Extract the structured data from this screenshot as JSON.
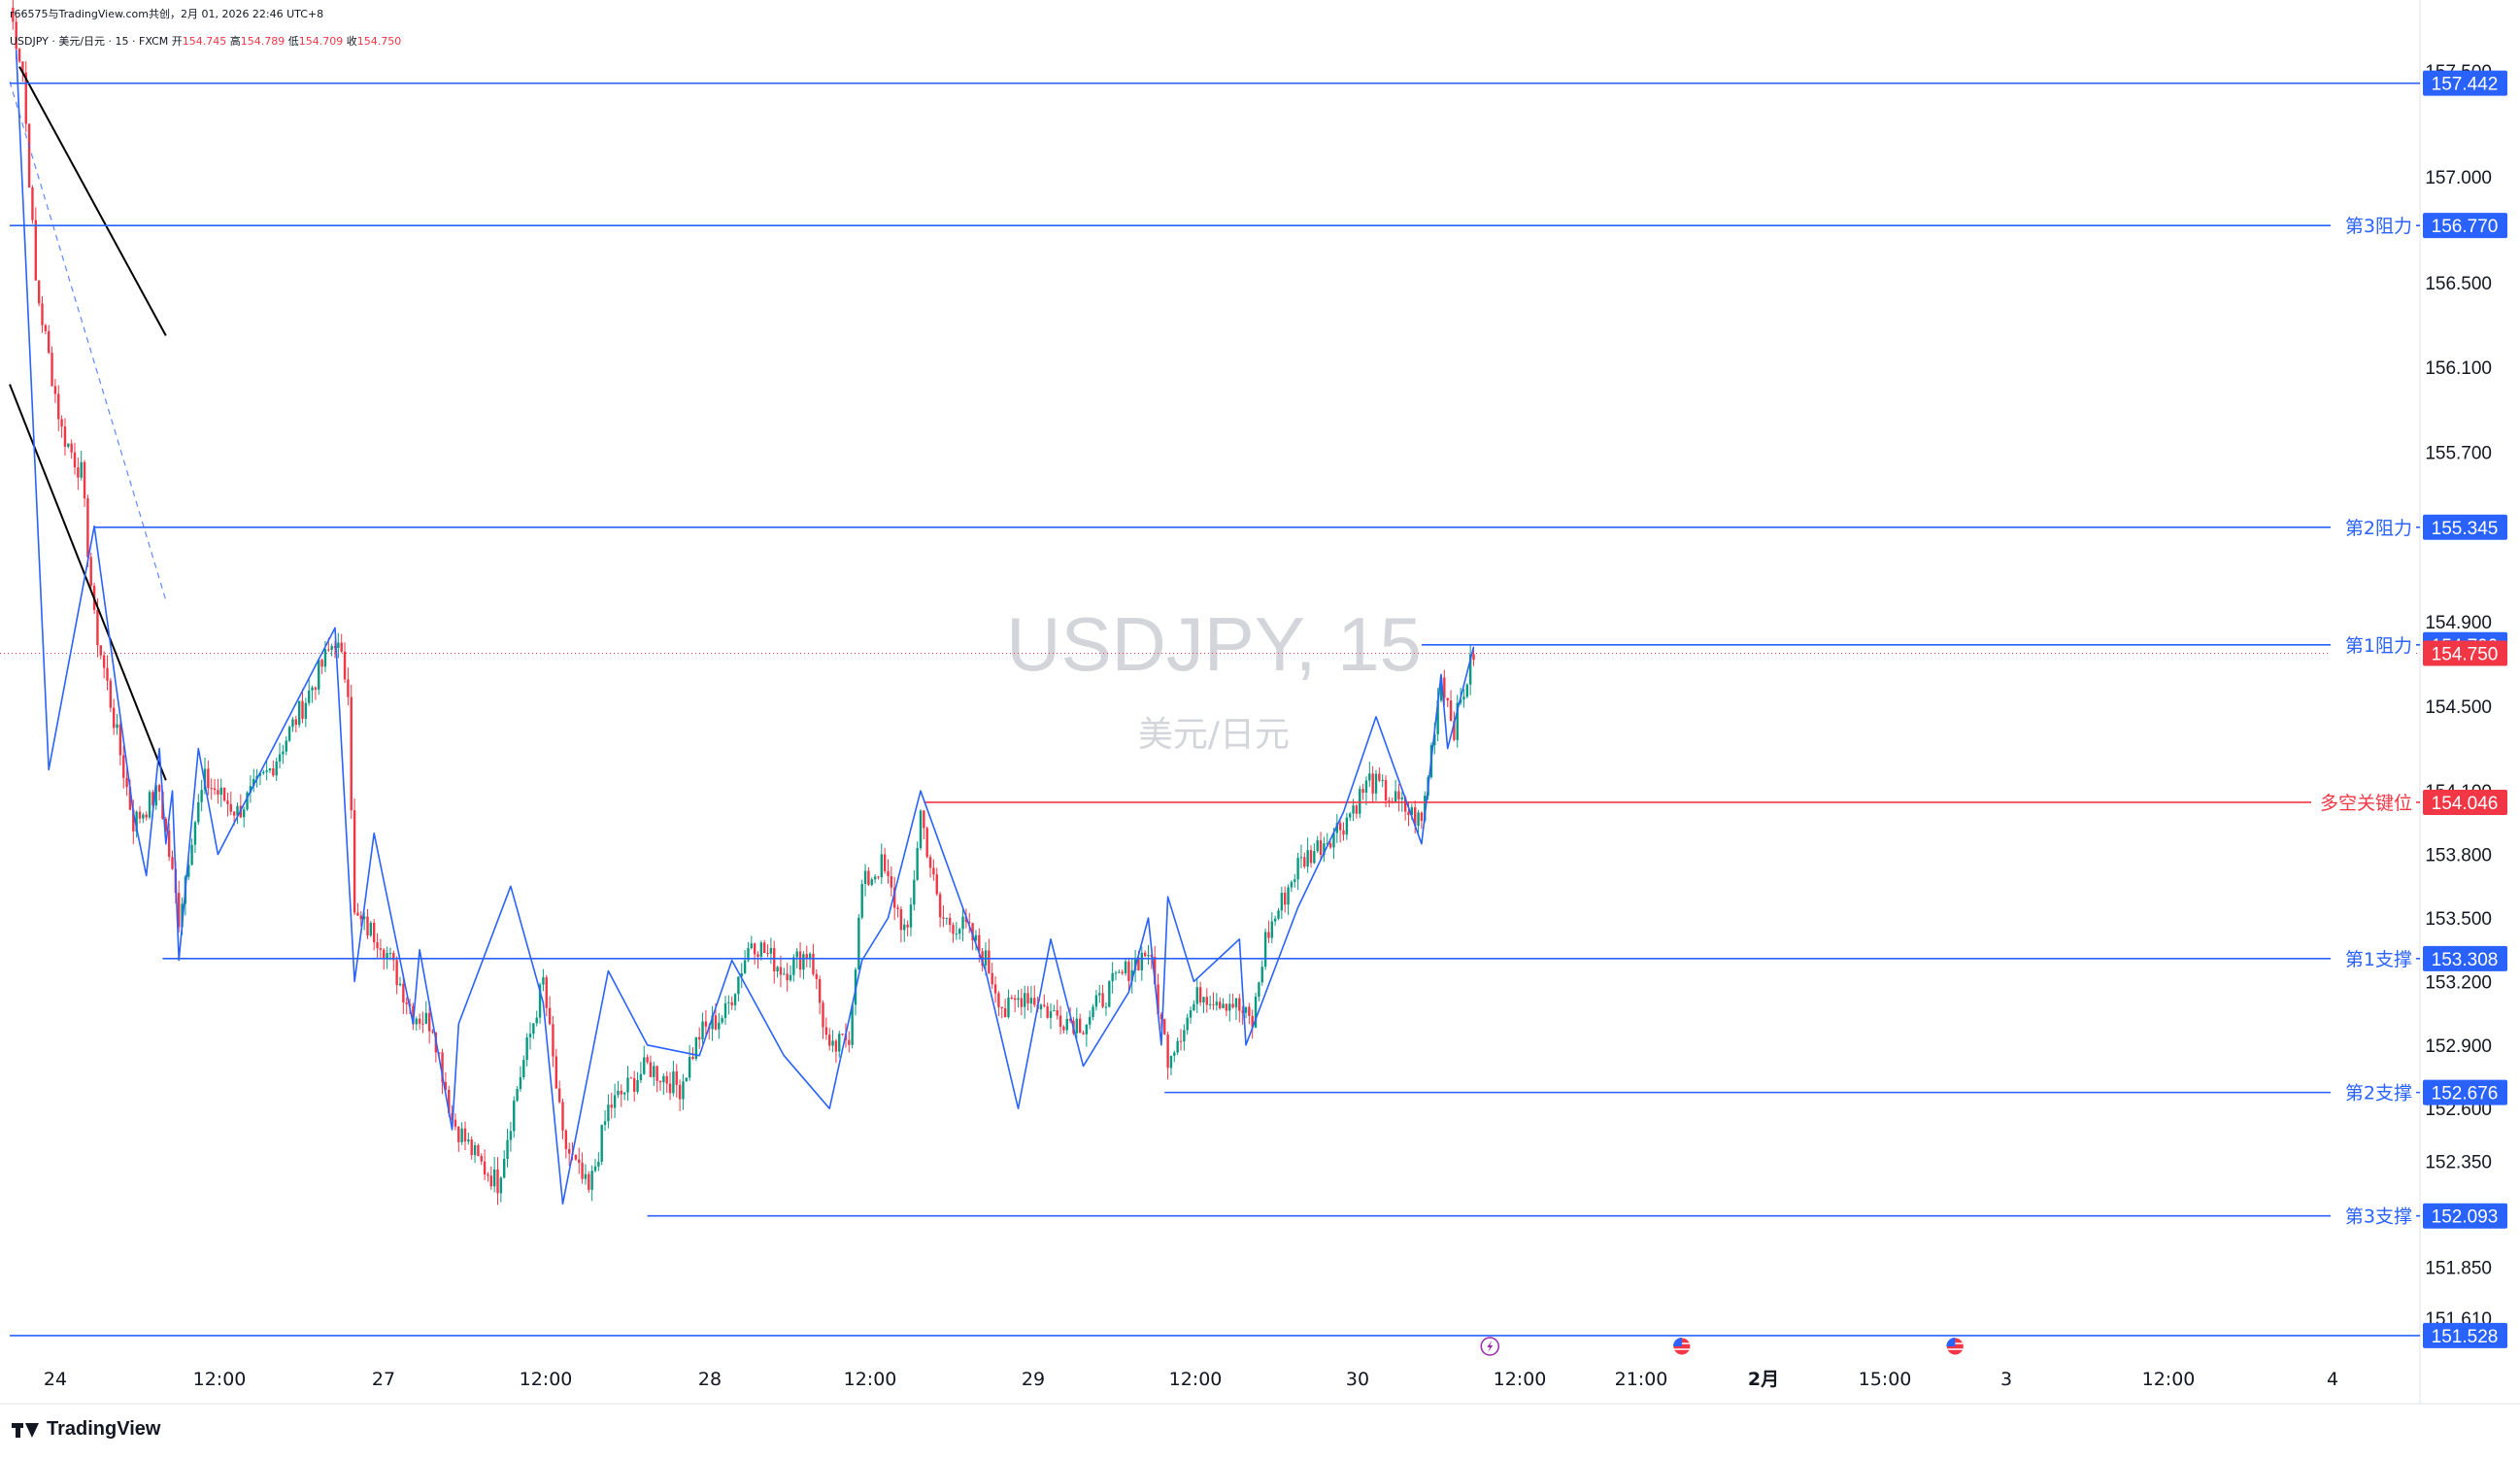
{
  "header": {
    "line1": "r66575与TradingView.com共创，2月 01, 2026 22:46 UTC+8",
    "symbol_line": "USDJPY · 美元/日元 · 15 · FXCM",
    "open_label": "开",
    "open": "154.745",
    "high_label": "高",
    "high": "154.789",
    "low_label": "低",
    "low": "154.709",
    "close_label": "收",
    "close": "154.750"
  },
  "watermark": {
    "symbol": "USDJPY, 15",
    "name": "美元/日元"
  },
  "brand": "TradingView",
  "colors": {
    "up": "#089981",
    "down": "#f23645",
    "level": "#2962ff",
    "pivot": "#f23645",
    "trend": "#000000"
  },
  "chart_data": {
    "type": "candlestick",
    "timeframe": "15",
    "y_ticks": [
      "157.500",
      "157.000",
      "156.500",
      "156.100",
      "155.700",
      "154.900",
      "154.500",
      "154.100",
      "153.800",
      "153.500",
      "153.200",
      "152.900",
      "152.600",
      "152.350",
      "151.850",
      "151.610"
    ],
    "x_ticks": [
      "24",
      "12:00",
      "27",
      "12:00",
      "28",
      "12:00",
      "29",
      "12:00",
      "30",
      "12:00",
      "21:00",
      "2月",
      "15:00",
      "3",
      "12:00",
      "4"
    ],
    "last_price": 154.75,
    "levels": [
      {
        "label": "",
        "price": 157.442,
        "value_text": "157.442",
        "color": "#2962ff",
        "x_start": 0
      },
      {
        "label": "第3阻力",
        "price": 156.77,
        "value_text": "156.770",
        "color": "#2962ff",
        "x_start": 0
      },
      {
        "label": "第2阻力",
        "price": 155.345,
        "value_text": "155.345",
        "color": "#2962ff",
        "x_start": 26
      },
      {
        "label": "第1阻力",
        "price": 154.79,
        "value_text": "154.790",
        "color": "#2962ff",
        "x_start": 434
      },
      {
        "label": "多空关键位",
        "price": 154.046,
        "value_text": "154.046",
        "color": "#f23645",
        "x_start": 281
      },
      {
        "label": "第1支撑",
        "price": 153.308,
        "value_text": "153.308",
        "color": "#2962ff",
        "x_start": 47
      },
      {
        "label": "第2支撑",
        "price": 152.676,
        "value_text": "152.676",
        "color": "#2962ff",
        "x_start": 355
      },
      {
        "label": "第3支撑",
        "price": 152.093,
        "value_text": "152.093",
        "color": "#2962ff",
        "x_start": 196
      },
      {
        "label": "",
        "price": 151.528,
        "value_text": "151.528",
        "color": "#2962ff",
        "x_start": 0
      }
    ],
    "zigzag": [
      [
        2,
        157.6
      ],
      [
        12,
        154.2
      ],
      [
        26,
        155.35
      ],
      [
        38,
        154.0
      ],
      [
        42,
        153.7
      ],
      [
        46,
        154.3
      ],
      [
        48,
        153.85
      ],
      [
        50,
        154.1
      ],
      [
        52,
        153.3
      ],
      [
        58,
        154.3
      ],
      [
        64,
        153.8
      ],
      [
        100,
        154.87
      ],
      [
        106,
        153.2
      ],
      [
        112,
        153.9
      ],
      [
        124,
        153.0
      ],
      [
        126,
        153.35
      ],
      [
        136,
        152.5
      ],
      [
        138,
        153.0
      ],
      [
        154,
        153.65
      ],
      [
        164,
        153.1
      ],
      [
        170,
        152.15
      ],
      [
        184,
        153.25
      ],
      [
        196,
        152.9
      ],
      [
        212,
        152.85
      ],
      [
        222,
        153.3
      ],
      [
        238,
        152.85
      ],
      [
        252,
        152.6
      ],
      [
        262,
        153.3
      ],
      [
        270,
        153.5
      ],
      [
        280,
        154.1
      ],
      [
        300,
        153.25
      ],
      [
        310,
        152.6
      ],
      [
        320,
        153.4
      ],
      [
        330,
        152.8
      ],
      [
        344,
        153.15
      ],
      [
        350,
        153.5
      ],
      [
        354,
        152.9
      ],
      [
        356,
        153.6
      ],
      [
        364,
        153.2
      ],
      [
        378,
        153.4
      ],
      [
        380,
        152.9
      ],
      [
        396,
        153.55
      ],
      [
        410,
        154.0
      ],
      [
        420,
        154.45
      ],
      [
        434,
        153.85
      ],
      [
        440,
        154.65
      ],
      [
        442,
        154.3
      ],
      [
        450,
        154.78
      ]
    ],
    "trendlines": [
      {
        "from": [
          3,
          157.52
        ],
        "to": [
          48,
          156.25
        ],
        "style": "solid"
      },
      {
        "from": [
          0,
          156.02
        ],
        "to": [
          48,
          154.15
        ],
        "style": "solid"
      },
      {
        "from": [
          0,
          157.45
        ],
        "to": [
          48,
          155.0
        ],
        "style": "dashed"
      }
    ],
    "events": [
      {
        "type": "lightning",
        "bar": 455
      },
      {
        "type": "us-flag",
        "bar": 514
      },
      {
        "type": "us-flag",
        "bar": 598
      }
    ],
    "anchors": [
      [
        0,
        157.8
      ],
      [
        4,
        157.5
      ],
      [
        8,
        156.5
      ],
      [
        16,
        155.8
      ],
      [
        22,
        155.6
      ],
      [
        26,
        154.9
      ],
      [
        30,
        154.6
      ],
      [
        38,
        153.95
      ],
      [
        46,
        154.1
      ],
      [
        52,
        153.5
      ],
      [
        56,
        153.9
      ],
      [
        60,
        154.15
      ],
      [
        70,
        154.0
      ],
      [
        80,
        154.2
      ],
      [
        90,
        154.5
      ],
      [
        100,
        154.82
      ],
      [
        104,
        154.6
      ],
      [
        106,
        153.5
      ],
      [
        114,
        153.4
      ],
      [
        124,
        153.05
      ],
      [
        130,
        153.0
      ],
      [
        136,
        152.55
      ],
      [
        144,
        152.35
      ],
      [
        150,
        152.25
      ],
      [
        156,
        152.7
      ],
      [
        164,
        153.2
      ],
      [
        170,
        152.45
      ],
      [
        178,
        152.2
      ],
      [
        184,
        152.6
      ],
      [
        196,
        152.8
      ],
      [
        206,
        152.7
      ],
      [
        212,
        152.95
      ],
      [
        220,
        153.05
      ],
      [
        228,
        153.4
      ],
      [
        238,
        153.25
      ],
      [
        246,
        153.35
      ],
      [
        252,
        152.85
      ],
      [
        258,
        152.95
      ],
      [
        262,
        153.65
      ],
      [
        268,
        153.75
      ],
      [
        276,
        153.4
      ],
      [
        280,
        154.0
      ],
      [
        286,
        153.5
      ],
      [
        294,
        153.45
      ],
      [
        300,
        153.3
      ],
      [
        306,
        153.05
      ],
      [
        312,
        153.15
      ],
      [
        320,
        153.05
      ],
      [
        330,
        153.0
      ],
      [
        340,
        153.2
      ],
      [
        350,
        153.35
      ],
      [
        354,
        153.0
      ],
      [
        356,
        152.85
      ],
      [
        366,
        153.15
      ],
      [
        376,
        153.1
      ],
      [
        382,
        153.0
      ],
      [
        386,
        153.4
      ],
      [
        396,
        153.75
      ],
      [
        410,
        153.95
      ],
      [
        418,
        154.15
      ],
      [
        426,
        154.05
      ],
      [
        434,
        153.95
      ],
      [
        440,
        154.65
      ],
      [
        444,
        154.4
      ],
      [
        450,
        154.75
      ]
    ]
  }
}
